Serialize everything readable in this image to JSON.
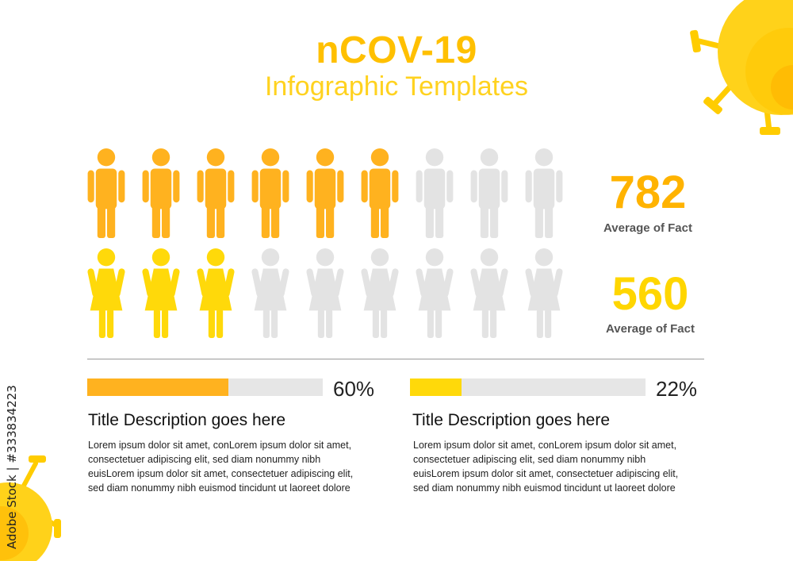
{
  "header": {
    "title": "nCOV-19",
    "subtitle": "Infographic Templates"
  },
  "colors": {
    "male_active": "#ffb21f",
    "female_active": "#ffd90a",
    "inactive": "#e3e3e3",
    "number_orange": "#ffb300",
    "number_yellow": "#ffd600",
    "virus": "#ffd21a"
  },
  "figure_rows": [
    {
      "icon": "man-icon",
      "total": 9,
      "highlighted": 6
    },
    {
      "icon": "woman-icon",
      "total": 9,
      "highlighted": 3
    }
  ],
  "stats": [
    {
      "value": "782",
      "label": "Average of Fact"
    },
    {
      "value": "560",
      "label": "Average of Fact"
    }
  ],
  "blocks": [
    {
      "percent_text": "60%",
      "progress": 0.6,
      "title": "Title Description goes here",
      "lines": [
        "Lorem ipsum dolor sit amet, conLorem ipsum dolor sit amet,",
        "consectetuer adipiscing elit, sed diam nonummy nibh",
        "euisLorem ipsum dolor sit amet, consectetuer adipiscing elit,",
        "sed diam nonummy nibh euismod tincidunt ut laoreet dolore"
      ]
    },
    {
      "percent_text": "22%",
      "progress": 0.22,
      "title": "Title Description goes here",
      "lines": [
        "Lorem ipsum dolor sit amet, conLorem ipsum dolor sit amet,",
        "consectetuer adipiscing elit, sed diam nonummy nibh",
        "euisLorem ipsum dolor sit amet, consectetuer adipiscing elit,",
        "sed diam nonummy nibh euismod tincidunt ut laoreet dolore"
      ]
    }
  ],
  "side_text": "Adobe Stock | #333834223"
}
